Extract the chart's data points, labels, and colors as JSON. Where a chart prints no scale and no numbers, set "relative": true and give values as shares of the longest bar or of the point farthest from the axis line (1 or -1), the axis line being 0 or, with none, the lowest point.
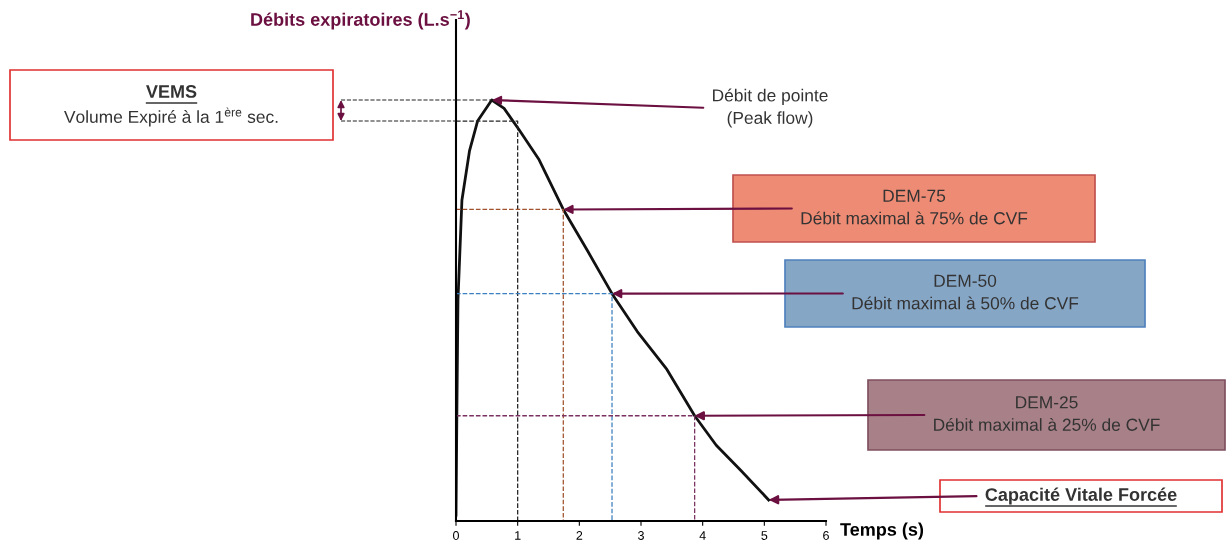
{
  "chart_data": {
    "type": "line",
    "relative": true,
    "xlabel": "Temps (s)",
    "ylabel": "Débits expiratoires (L.s$^{−1}$)",
    "x": [
      0,
      0.016,
      0.032,
      0.096,
      0.22,
      0.35,
      0.58,
      0.78,
      1.02,
      1.34,
      1.74,
      2.14,
      2.53,
      2.94,
      3.42,
      3.87,
      4.22,
      4.62,
      5.07
    ],
    "series": [
      {
        "color": "#111111",
        "values": [
          0.014,
          0.287,
          0.525,
          0.762,
          0.88,
          0.95,
          1.0,
          0.98,
          0.93,
          0.86,
          0.74,
          0.64,
          0.54,
          0.45,
          0.36,
          0.25,
          0.18,
          0.12,
          0.05
        ]
      },
      {
        "color": "#222222",
        "line_style": "dashed",
        "x": [
          0,
          0.58
        ],
        "values": [
          1.0,
          1.0
        ]
      },
      {
        "color": "#222222",
        "line_style": "dashed",
        "x": [
          0,
          1.0,
          1.0
        ],
        "values": [
          0.95,
          0.95,
          0
        ]
      },
      {
        "color": "#a0522d",
        "line_style": "dashed",
        "x": [
          0,
          1.74,
          1.74
        ],
        "values": [
          0.74,
          0.74,
          0
        ]
      },
      {
        "color": "#3a7fc0",
        "line_style": "dashed",
        "x": [
          0,
          2.53,
          2.53
        ],
        "values": [
          0.54,
          0.54,
          0
        ]
      },
      {
        "color": "#7a3060",
        "line_style": "dashed",
        "x": [
          0,
          3.87,
          3.87
        ],
        "values": [
          0.25,
          0.25,
          0
        ]
      }
    ],
    "xlim": [
      0,
      6
    ],
    "xticks": [
      0,
      1,
      2,
      3,
      4,
      5,
      6
    ],
    "tick_labels": "x",
    "marker": "none",
    "line_style": "solid",
    "annotations": [
      "VEMS\nVolume Expiré à la 1$^{ère}$ sec.",
      {
        "text": "Débit de pointe\n(Peak flow)",
        "x": 0.58,
        "y": 1.0
      },
      {
        "text": "DEM-75\nDébit maximal à 75% de CVF",
        "x": 1.74,
        "y": 0.74
      },
      {
        "text": "DEM-50\nDébit maximal à 50% de CVF",
        "x": 2.53,
        "y": 0.54
      },
      {
        "text": "DEM-25\nDébit maximal à 25% de CVF",
        "x": 3.87,
        "y": 0.25
      },
      {
        "text": "Capacité Vitale Forcée",
        "x": 5.07,
        "y": 0.05
      }
    ]
  }
}
